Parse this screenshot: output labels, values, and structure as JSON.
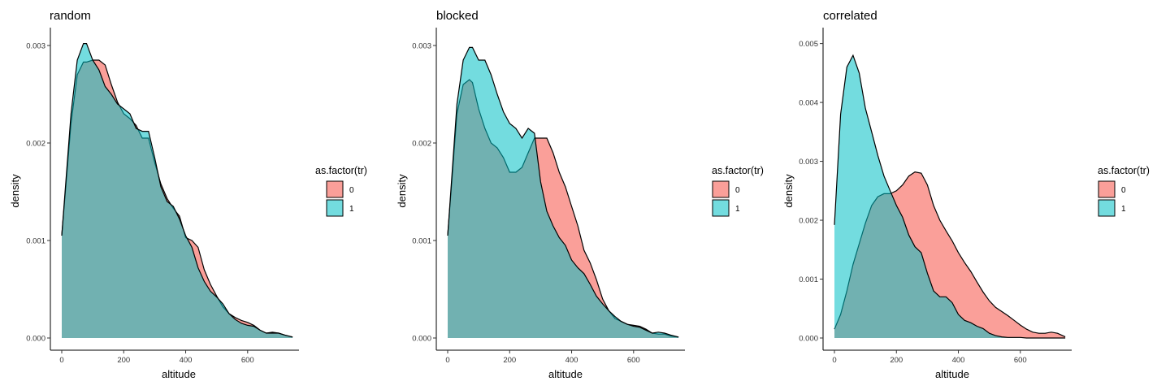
{
  "colors": {
    "group_0_fill": "#F8766D",
    "group_1_fill": "#00BFC4",
    "outline": "#000000",
    "axis": "#000000",
    "overlap_rendered": "#74A9A8"
  },
  "chart_data": [
    {
      "type": "area",
      "title": "random",
      "xlabel": "altitude",
      "ylabel": "density",
      "xlim": [
        0,
        750
      ],
      "ylim": [
        0,
        0.00305
      ],
      "x_ticks": [
        "0",
        "200",
        "400",
        "600"
      ],
      "y_ticks": [
        "0.000",
        "0.001",
        "0.002",
        "0.003"
      ],
      "legend": {
        "title": "as.factor(tr)",
        "entries": [
          "0",
          "1"
        ],
        "placement": "right"
      },
      "x": [
        0,
        30,
        50,
        70,
        80,
        100,
        120,
        140,
        160,
        180,
        200,
        220,
        240,
        260,
        280,
        300,
        320,
        340,
        360,
        380,
        400,
        420,
        440,
        460,
        480,
        500,
        520,
        540,
        560,
        580,
        600,
        620,
        640,
        660,
        680,
        700,
        720,
        745
      ],
      "series": [
        {
          "name": "0",
          "values": [
            0.00105,
            0.0022,
            0.0027,
            0.00283,
            0.00283,
            0.00285,
            0.00285,
            0.0028,
            0.0026,
            0.00242,
            0.0023,
            0.00225,
            0.00218,
            0.00205,
            0.00205,
            0.0018,
            0.00158,
            0.00143,
            0.00133,
            0.00125,
            0.00103,
            0.001,
            0.00093,
            0.0007,
            0.00055,
            0.00043,
            0.00032,
            0.00025,
            0.00021,
            0.00018,
            0.00016,
            0.00013,
            8e-05,
            5e-05,
            6e-05,
            5e-05,
            3e-05,
            1e-05
          ]
        },
        {
          "name": "1",
          "values": [
            0.00105,
            0.0023,
            0.00285,
            0.00302,
            0.00302,
            0.00285,
            0.00275,
            0.00258,
            0.0025,
            0.0024,
            0.00235,
            0.0023,
            0.00215,
            0.00212,
            0.00212,
            0.00185,
            0.00155,
            0.0014,
            0.00135,
            0.00122,
            0.00105,
            0.00093,
            0.00072,
            0.00058,
            0.00048,
            0.00042,
            0.00035,
            0.00025,
            0.00019,
            0.00015,
            0.00013,
            0.00012,
            8e-05,
            5e-05,
            5e-05,
            5e-05,
            3e-05,
            1e-05
          ]
        }
      ]
    },
    {
      "type": "area",
      "title": "blocked",
      "xlabel": "altitude",
      "ylabel": "density",
      "xlim": [
        0,
        750
      ],
      "ylim": [
        0,
        0.00305
      ],
      "x_ticks": [
        "0",
        "200",
        "400",
        "600"
      ],
      "y_ticks": [
        "0.000",
        "0.001",
        "0.002",
        "0.003"
      ],
      "legend": {
        "title": "as.factor(tr)",
        "entries": [
          "0",
          "1"
        ],
        "placement": "right"
      },
      "x": [
        0,
        30,
        50,
        70,
        80,
        100,
        120,
        140,
        160,
        180,
        200,
        220,
        240,
        260,
        280,
        300,
        320,
        340,
        360,
        380,
        400,
        420,
        440,
        460,
        480,
        500,
        520,
        540,
        560,
        580,
        600,
        620,
        640,
        660,
        680,
        700,
        720,
        745
      ],
      "series": [
        {
          "name": "0",
          "values": [
            0.00105,
            0.0023,
            0.0026,
            0.00265,
            0.00262,
            0.00235,
            0.00215,
            0.002,
            0.00195,
            0.00185,
            0.0017,
            0.0017,
            0.00175,
            0.0019,
            0.00205,
            0.00205,
            0.00205,
            0.0019,
            0.0017,
            0.00155,
            0.00135,
            0.00115,
            0.0009,
            0.00077,
            0.0006,
            0.0004,
            0.00028,
            0.0002,
            0.00017,
            0.00014,
            0.00013,
            0.00012,
            9e-05,
            5e-05,
            4e-05,
            4e-05,
            2e-05,
            1e-05
          ]
        },
        {
          "name": "1",
          "values": [
            0.00105,
            0.0024,
            0.00285,
            0.00298,
            0.00298,
            0.00285,
            0.00285,
            0.0027,
            0.0025,
            0.00232,
            0.0022,
            0.00215,
            0.00205,
            0.00215,
            0.0021,
            0.0016,
            0.0013,
            0.00115,
            0.00103,
            0.00095,
            0.0008,
            0.00072,
            0.00066,
            0.00055,
            0.00043,
            0.00035,
            0.00028,
            0.00022,
            0.00017,
            0.00014,
            0.00012,
            0.00011,
            8e-05,
            5e-05,
            6e-05,
            5e-05,
            3e-05,
            1e-05
          ]
        }
      ]
    },
    {
      "type": "area",
      "title": "correlated",
      "xlabel": "altitude",
      "ylabel": "density",
      "xlim": [
        0,
        750
      ],
      "ylim": [
        0,
        0.00505
      ],
      "x_ticks": [
        "0",
        "200",
        "400",
        "600"
      ],
      "y_ticks": [
        "0.000",
        "0.001",
        "0.002",
        "0.003",
        "0.004",
        "0.005"
      ],
      "legend": {
        "title": "as.factor(tr)",
        "entries": [
          "0",
          "1"
        ],
        "placement": "right"
      },
      "x": [
        0,
        20,
        40,
        60,
        80,
        100,
        120,
        140,
        160,
        180,
        200,
        220,
        240,
        260,
        280,
        300,
        320,
        340,
        360,
        380,
        400,
        420,
        440,
        460,
        480,
        500,
        520,
        540,
        560,
        580,
        600,
        620,
        640,
        660,
        680,
        700,
        720,
        745
      ],
      "series": [
        {
          "name": "0",
          "values": [
            0.00015,
            0.0004,
            0.0008,
            0.00125,
            0.0016,
            0.00195,
            0.00225,
            0.0024,
            0.00245,
            0.00245,
            0.0025,
            0.0026,
            0.00275,
            0.00282,
            0.0028,
            0.0026,
            0.00225,
            0.002,
            0.00182,
            0.00165,
            0.00145,
            0.00128,
            0.00113,
            0.00095,
            0.00078,
            0.00063,
            0.00052,
            0.00045,
            0.00038,
            0.0003,
            0.00022,
            0.00015,
            0.0001,
            8e-05,
            8e-05,
            0.0001,
            8e-05,
            2e-05
          ]
        },
        {
          "name": "1",
          "values": [
            0.00192,
            0.0038,
            0.0046,
            0.0048,
            0.0045,
            0.0039,
            0.0035,
            0.0031,
            0.00275,
            0.0025,
            0.00225,
            0.00205,
            0.00175,
            0.00155,
            0.00145,
            0.0011,
            0.0008,
            0.0007,
            0.0007,
            0.0006,
            0.0004,
            0.0003,
            0.00026,
            0.0002,
            0.00016,
            8e-05,
            4e-05,
            2e-05,
            1e-05,
            1e-05,
            1e-05,
            0.0,
            0.0,
            0.0,
            0.0,
            0.0,
            0.0,
            0.0
          ]
        }
      ]
    }
  ]
}
